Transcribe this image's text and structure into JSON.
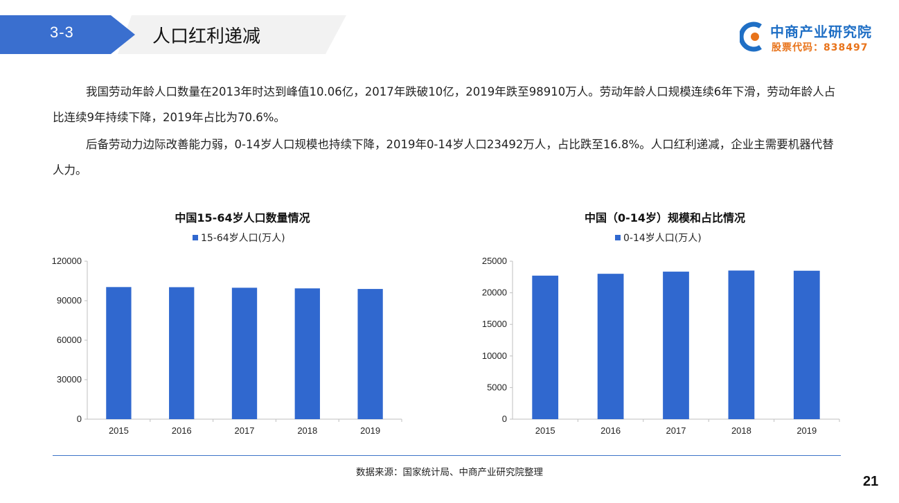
{
  "header": {
    "section_no": "3-3",
    "title": "人口红利递减"
  },
  "logo": {
    "name": "中商产业研究院",
    "code": "股票代码：838497",
    "brand_color": "#1f6fc5",
    "code_color": "#e8731a"
  },
  "paragraphs": [
    "我国劳动年龄人口数量在2013年时达到峰值10.06亿，2017年跌破10亿，2019年跌至98910万人。劳动年龄人口规模连续6年下滑，劳动年龄人占比连续9年持续下降，2019年占比为70.6%。",
    "后备劳动力边际改善能力弱，0-14岁人口规模也持续下降，2019年0-14岁人口23492万人，占比跌至16.8%。人口红利递减，企业主需要机器代替人力。"
  ],
  "chart_data": [
    {
      "type": "bar",
      "title": "中国15-64岁人口数量情况",
      "categories": [
        "2015",
        "2016",
        "2017",
        "2018",
        "2019"
      ],
      "series": [
        {
          "name": "15-64岁人口(万人)",
          "values": [
            100361,
            100260,
            99829,
            99357,
            98910
          ]
        }
      ],
      "ylim": [
        0,
        120000
      ],
      "yticks": [
        "120000",
        "90000",
        "60000",
        "30000",
        "0"
      ],
      "legend": "top",
      "grid": false,
      "color": "#3068cf"
    },
    {
      "type": "bar",
      "title": "中国（0-14岁）规模和占比情况",
      "categories": [
        "2015",
        "2016",
        "2017",
        "2018",
        "2019"
      ],
      "series": [
        {
          "name": "0-14岁人口(万人)",
          "values": [
            22715,
            23008,
            23348,
            23523,
            23492
          ]
        }
      ],
      "ylim": [
        0,
        25000
      ],
      "yticks": [
        "25000",
        "20000",
        "15000",
        "10000",
        "5000",
        "0"
      ],
      "legend": "top",
      "grid": false,
      "color": "#3068cf"
    }
  ],
  "source": "数据来源：国家统计局、中商产业研究院整理",
  "page_number": "21"
}
